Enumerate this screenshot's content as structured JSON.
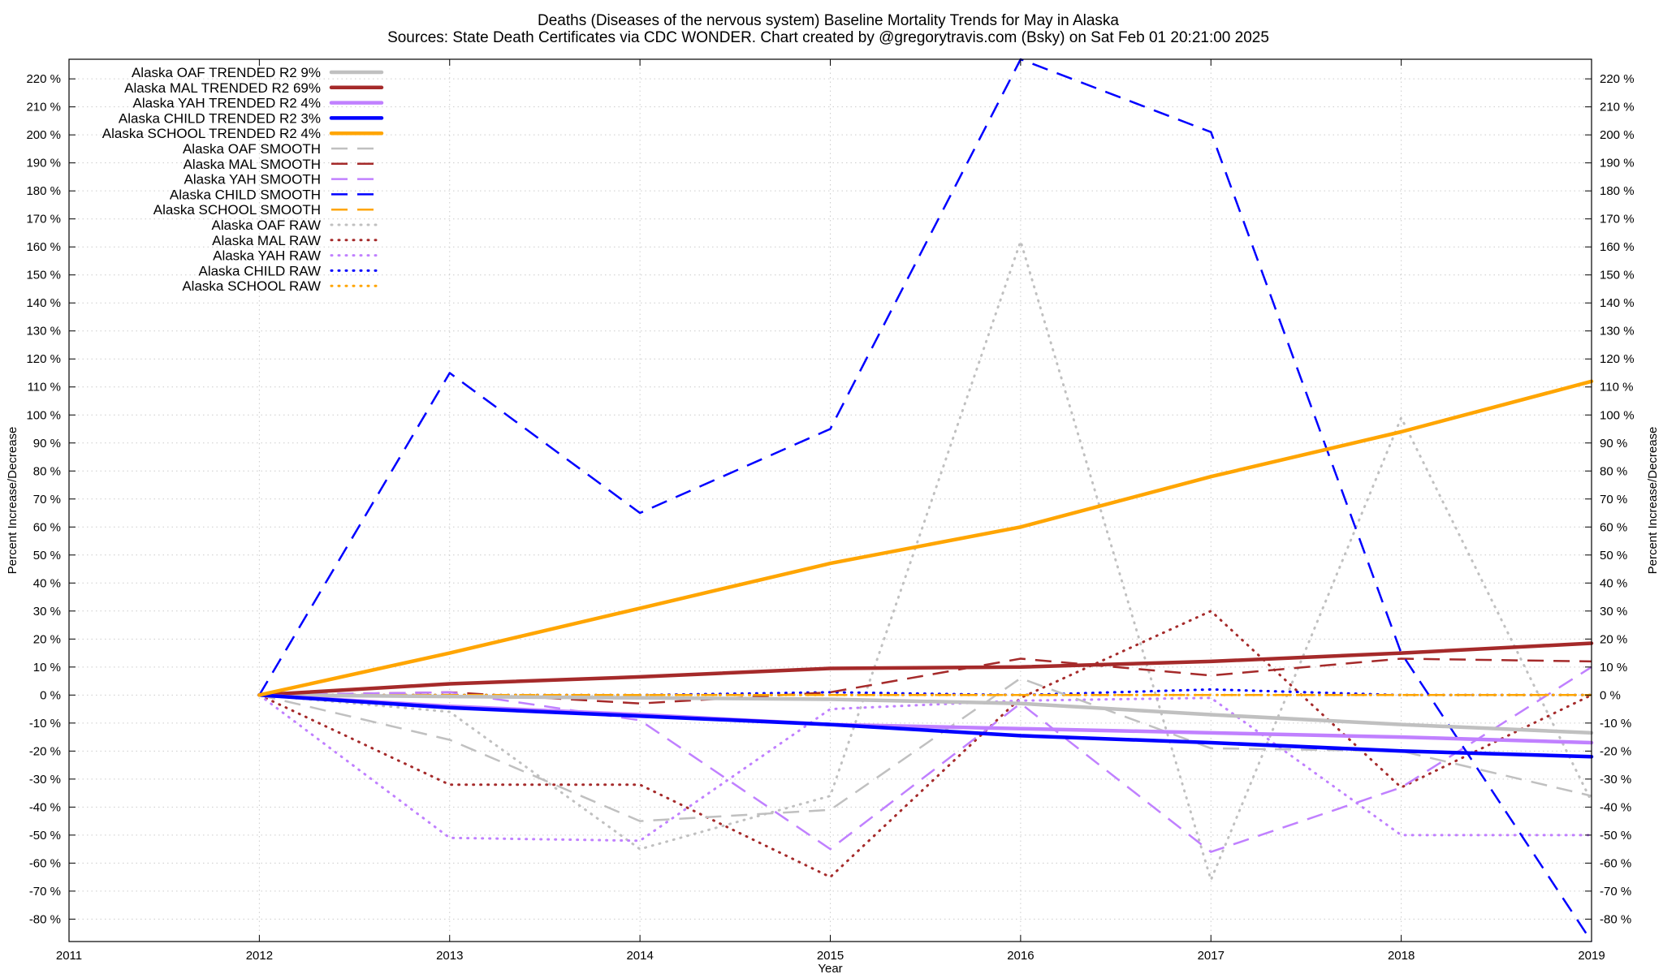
{
  "chart_data": {
    "type": "line",
    "title_line1": "Deaths (Diseases of the nervous system)  Baseline Mortality Trends for May in Alaska",
    "title_line2": "Sources: State Death Certificates via CDC WONDER.                Chart created by @gregorytravis.com (Bsky) on Sat Feb 01 20:21:00 2025",
    "xlabel": "Year",
    "ylabel": "Percent Increase/Decrease",
    "ylabel_right": "Percent Increase/Decrease",
    "xlim": [
      2011,
      2019
    ],
    "ylim": [
      -88,
      227
    ],
    "x_ticks": [
      2011,
      2012,
      2013,
      2014,
      2015,
      2016,
      2017,
      2018,
      2019
    ],
    "y_ticks": [
      220,
      210,
      200,
      190,
      180,
      170,
      160,
      150,
      140,
      130,
      120,
      110,
      100,
      90,
      80,
      70,
      60,
      50,
      40,
      30,
      20,
      10,
      0,
      -10,
      -20,
      -30,
      -40,
      -50,
      -60,
      -70,
      -80
    ],
    "y_tick_suffix": " %",
    "grid": true,
    "legend_position": "top-left",
    "x": [
      2012,
      2013,
      2014,
      2015,
      2016,
      2017,
      2018,
      2019
    ],
    "series": [
      {
        "name": "Alaska OAF TRENDED R2  9%",
        "style": "solid",
        "color": "#c0c0c0",
        "values": [
          0,
          -0.5,
          -1,
          -1.5,
          -3,
          -7,
          -10.5,
          -13.5
        ]
      },
      {
        "name": "Alaska MAL TRENDED R2  69%",
        "style": "solid",
        "color": "#a52a2a",
        "values": [
          0,
          4,
          6.5,
          9.5,
          10,
          12,
          15,
          18.5
        ]
      },
      {
        "name": "Alaska YAH TRENDED R2  4%",
        "style": "solid",
        "color": "#c080ff",
        "values": [
          0,
          -4,
          -7,
          -10.5,
          -12,
          -13.5,
          -15,
          -17
        ]
      },
      {
        "name": "Alaska CHILD TRENDED R2  3%",
        "style": "solid",
        "color": "#0000ff",
        "values": [
          0,
          -4.5,
          -7.5,
          -10.5,
          -14.5,
          -17,
          -20,
          -22
        ]
      },
      {
        "name": "Alaska SCHOOL TRENDED R2  4%",
        "style": "solid",
        "color": "#ffa500",
        "values": [
          0,
          15,
          31,
          47,
          60,
          78,
          94,
          112
        ]
      },
      {
        "name": "Alaska OAF SMOOTH",
        "style": "dashed",
        "color": "#c0c0c0",
        "values": [
          0,
          -16,
          -45,
          -41,
          6,
          -19,
          -20,
          -36
        ]
      },
      {
        "name": "Alaska MAL SMOOTH",
        "style": "dashed",
        "color": "#a52a2a",
        "values": [
          0,
          1,
          -3,
          1,
          13,
          7,
          13,
          12
        ]
      },
      {
        "name": "Alaska YAH SMOOTH",
        "style": "dashed",
        "color": "#c080ff",
        "values": [
          0,
          1,
          -9,
          -55,
          -3,
          -56,
          -33,
          10
        ]
      },
      {
        "name": "Alaska CHILD SMOOTH",
        "style": "dashed",
        "color": "#0000ff",
        "values": [
          0,
          115,
          65,
          95,
          227,
          201,
          15,
          -88
        ]
      },
      {
        "name": "Alaska SCHOOL SMOOTH",
        "style": "dashed",
        "color": "#ffa500",
        "values": [
          0,
          0,
          0,
          0,
          0,
          0,
          0,
          0
        ]
      },
      {
        "name": "Alaska OAF RAW",
        "style": "dotted",
        "color": "#c0c0c0",
        "values": [
          0,
          -6,
          -55,
          -36,
          162,
          -66,
          99,
          -38
        ]
      },
      {
        "name": "Alaska MAL RAW",
        "style": "dotted",
        "color": "#a52a2a",
        "values": [
          0,
          -32,
          -32,
          -65,
          -1,
          30,
          -33,
          0
        ]
      },
      {
        "name": "Alaska YAH RAW",
        "style": "dotted",
        "color": "#c080ff",
        "values": [
          0,
          -51,
          -52,
          -5,
          -2,
          -1,
          -50,
          -50
        ]
      },
      {
        "name": "Alaska CHILD RAW",
        "style": "dotted",
        "color": "#0000ff",
        "values": [
          0,
          0,
          0,
          1,
          0,
          2,
          0,
          0
        ]
      },
      {
        "name": "Alaska SCHOOL RAW",
        "style": "dotted",
        "color": "#ffa500",
        "values": [
          0,
          0,
          0,
          0,
          0,
          0,
          0,
          0
        ]
      }
    ]
  }
}
